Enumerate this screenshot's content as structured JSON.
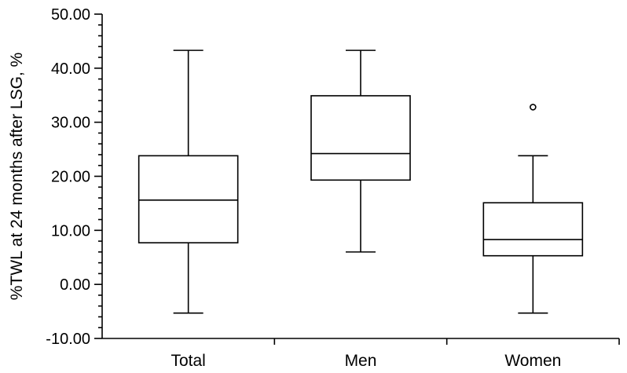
{
  "chart_data": {
    "type": "box",
    "title": "",
    "xlabel": "",
    "ylabel": "%TWL at 24 months after LSG, %",
    "ylim": [
      -10,
      50
    ],
    "yticks": [
      "-10.00",
      "0.00",
      "10.00",
      "20.00",
      "30.00",
      "40.00",
      "50.00"
    ],
    "categories": [
      "Total",
      "Men",
      "Women"
    ],
    "boxes": [
      {
        "category": "Total",
        "whisker_low": -5.3,
        "q1": 7.7,
        "median": 15.6,
        "q3": 23.8,
        "whisker_high": 43.3,
        "outliers": []
      },
      {
        "category": "Men",
        "whisker_low": 6.0,
        "q1": 19.3,
        "median": 24.2,
        "q3": 34.9,
        "whisker_high": 43.3,
        "outliers": []
      },
      {
        "category": "Women",
        "whisker_low": -5.3,
        "q1": 5.3,
        "median": 8.3,
        "q3": 15.1,
        "whisker_high": 23.8,
        "outliers": [
          32.8
        ]
      }
    ],
    "grid": false,
    "legend": "none"
  }
}
